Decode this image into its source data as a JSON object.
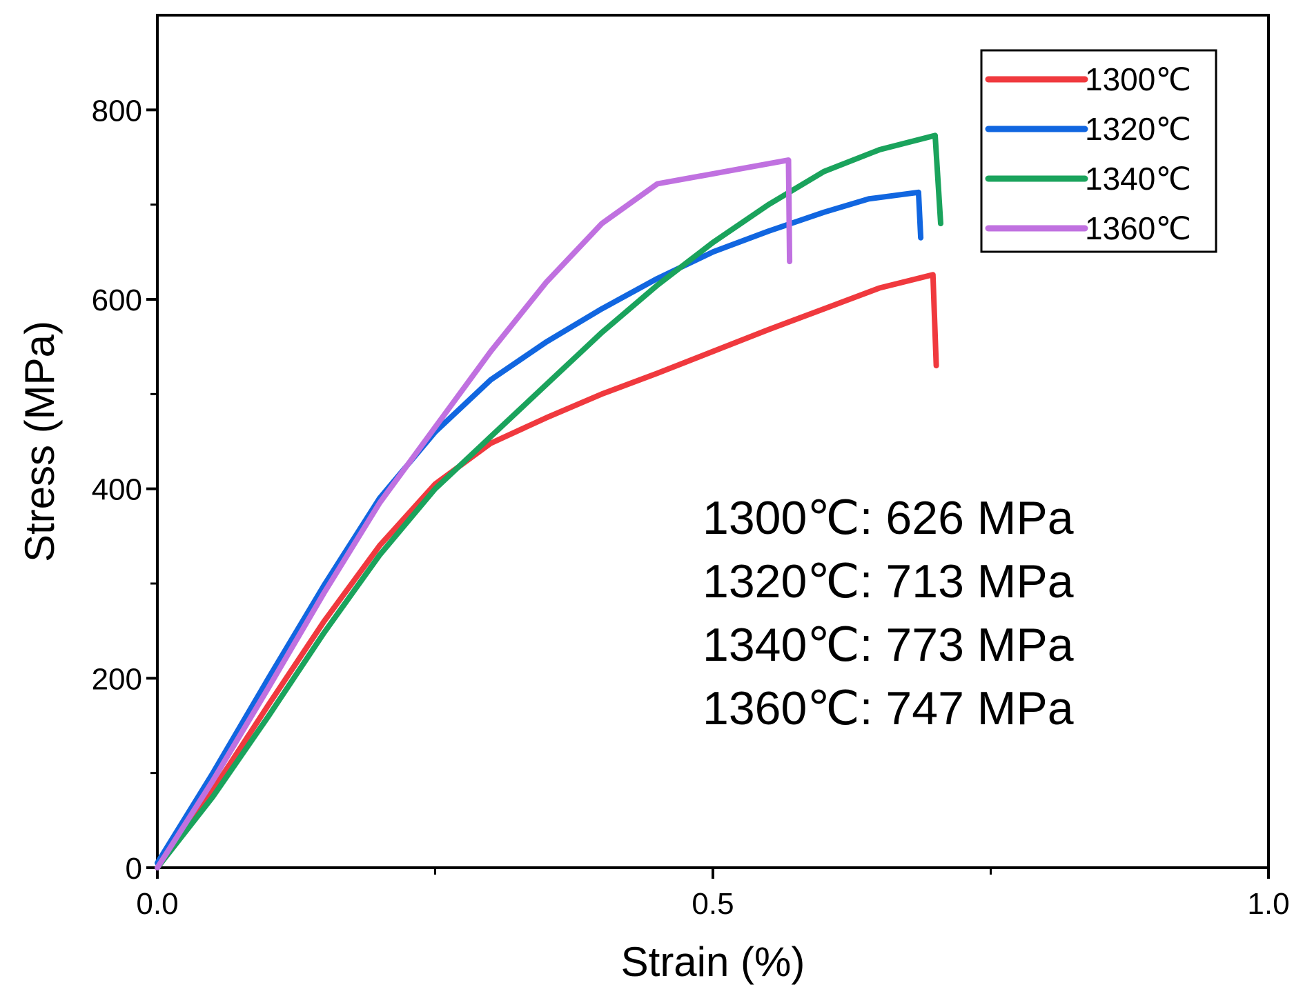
{
  "chart_data": {
    "type": "line",
    "xlabel": "Strain (%)",
    "ylabel": "Stress (MPa)",
    "xlim": [
      0,
      1
    ],
    "ylim": [
      0,
      900
    ],
    "x_ticks": [
      0.0,
      0.5,
      1.0
    ],
    "x_tick_labels": [
      "0.0",
      "0.5",
      "1.0"
    ],
    "x_minor_ticks": [
      0.25,
      0.75
    ],
    "y_ticks": [
      0,
      200,
      400,
      600,
      800
    ],
    "y_tick_labels": [
      "0",
      "200",
      "400",
      "600",
      "800"
    ],
    "y_minor_ticks": [
      100,
      300,
      500,
      700
    ],
    "grid": false,
    "legend_position": "top-right",
    "series": [
      {
        "name": "1300℃",
        "color": "#f0393e",
        "points": [
          [
            0,
            0
          ],
          [
            0.05,
            82
          ],
          [
            0.1,
            172
          ],
          [
            0.15,
            260
          ],
          [
            0.2,
            340
          ],
          [
            0.25,
            405
          ],
          [
            0.3,
            448
          ],
          [
            0.35,
            475
          ],
          [
            0.4,
            500
          ],
          [
            0.45,
            522
          ],
          [
            0.5,
            545
          ],
          [
            0.55,
            568
          ],
          [
            0.6,
            590
          ],
          [
            0.65,
            612
          ],
          [
            0.698,
            626
          ],
          [
            0.701,
            530
          ]
        ]
      },
      {
        "name": "1320℃",
        "color": "#1166e0",
        "points": [
          [
            0,
            5
          ],
          [
            0.05,
            100
          ],
          [
            0.1,
            200
          ],
          [
            0.15,
            298
          ],
          [
            0.2,
            390
          ],
          [
            0.25,
            460
          ],
          [
            0.3,
            515
          ],
          [
            0.35,
            555
          ],
          [
            0.4,
            590
          ],
          [
            0.45,
            622
          ],
          [
            0.5,
            650
          ],
          [
            0.55,
            672
          ],
          [
            0.6,
            692
          ],
          [
            0.64,
            706
          ],
          [
            0.685,
            713
          ],
          [
            0.687,
            665
          ]
        ]
      },
      {
        "name": "1340℃",
        "color": "#1aa35c",
        "points": [
          [
            0,
            0
          ],
          [
            0.05,
            75
          ],
          [
            0.1,
            160
          ],
          [
            0.15,
            248
          ],
          [
            0.2,
            330
          ],
          [
            0.25,
            400
          ],
          [
            0.3,
            455
          ],
          [
            0.35,
            510
          ],
          [
            0.4,
            565
          ],
          [
            0.45,
            615
          ],
          [
            0.5,
            660
          ],
          [
            0.55,
            700
          ],
          [
            0.6,
            735
          ],
          [
            0.65,
            758
          ],
          [
            0.7,
            773
          ],
          [
            0.705,
            680
          ]
        ]
      },
      {
        "name": "1360℃",
        "color": "#c071e0",
        "points": [
          [
            0,
            0
          ],
          [
            0.05,
            92
          ],
          [
            0.1,
            190
          ],
          [
            0.15,
            290
          ],
          [
            0.2,
            385
          ],
          [
            0.25,
            465
          ],
          [
            0.3,
            545
          ],
          [
            0.35,
            618
          ],
          [
            0.4,
            680
          ],
          [
            0.45,
            722
          ],
          [
            0.568,
            747
          ],
          [
            0.569,
            640
          ]
        ]
      }
    ],
    "annotations": [
      "1300℃: 626 MPa",
      "1320℃: 713 MPa",
      "1340℃: 773 MPa",
      "1360℃: 747 MPa"
    ]
  }
}
